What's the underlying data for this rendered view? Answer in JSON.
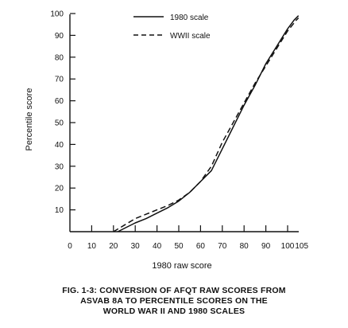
{
  "chart_data": {
    "type": "line",
    "title": "",
    "xlabel": "1980 raw score",
    "ylabel": "Percentile score",
    "xlim": [
      0,
      105
    ],
    "ylim": [
      0,
      100
    ],
    "x_ticks": [
      0,
      10,
      20,
      30,
      40,
      50,
      60,
      70,
      80,
      90,
      100,
      105
    ],
    "y_ticks": [
      10,
      20,
      30,
      40,
      50,
      60,
      70,
      80,
      90,
      100
    ],
    "grid": false,
    "legend_position": "top-center",
    "series": [
      {
        "name": "1980 scale",
        "style": "solid",
        "color": "#111111",
        "points": [
          [
            22,
            0
          ],
          [
            26,
            2
          ],
          [
            30,
            4
          ],
          [
            35,
            6
          ],
          [
            40,
            8.5
          ],
          [
            45,
            11
          ],
          [
            50,
            14
          ],
          [
            55,
            18
          ],
          [
            60,
            23
          ],
          [
            65,
            28
          ],
          [
            70,
            38
          ],
          [
            75,
            48
          ],
          [
            80,
            58
          ],
          [
            85,
            67
          ],
          [
            90,
            77
          ],
          [
            95,
            85
          ],
          [
            100,
            93
          ],
          [
            103,
            97
          ],
          [
            105,
            99
          ]
        ]
      },
      {
        "name": "WWII scale",
        "style": "dashed",
        "color": "#111111",
        "points": [
          [
            20,
            0
          ],
          [
            25,
            3
          ],
          [
            30,
            6
          ],
          [
            35,
            8
          ],
          [
            40,
            10
          ],
          [
            45,
            12
          ],
          [
            50,
            14.5
          ],
          [
            55,
            18
          ],
          [
            60,
            23
          ],
          [
            65,
            30
          ],
          [
            70,
            41
          ],
          [
            75,
            50
          ],
          [
            80,
            59
          ],
          [
            85,
            68
          ],
          [
            90,
            76
          ],
          [
            95,
            84
          ],
          [
            100,
            92
          ],
          [
            104,
            97
          ],
          [
            105,
            98
          ]
        ]
      }
    ]
  },
  "caption": {
    "line1": "FIG. 1-3:  CONVERSION OF AFQT RAW SCORES FROM",
    "line2": "ASVAB 8A TO PERCENTILE SCORES ON THE",
    "line3": "WORLD WAR II AND 1980 SCALES"
  }
}
